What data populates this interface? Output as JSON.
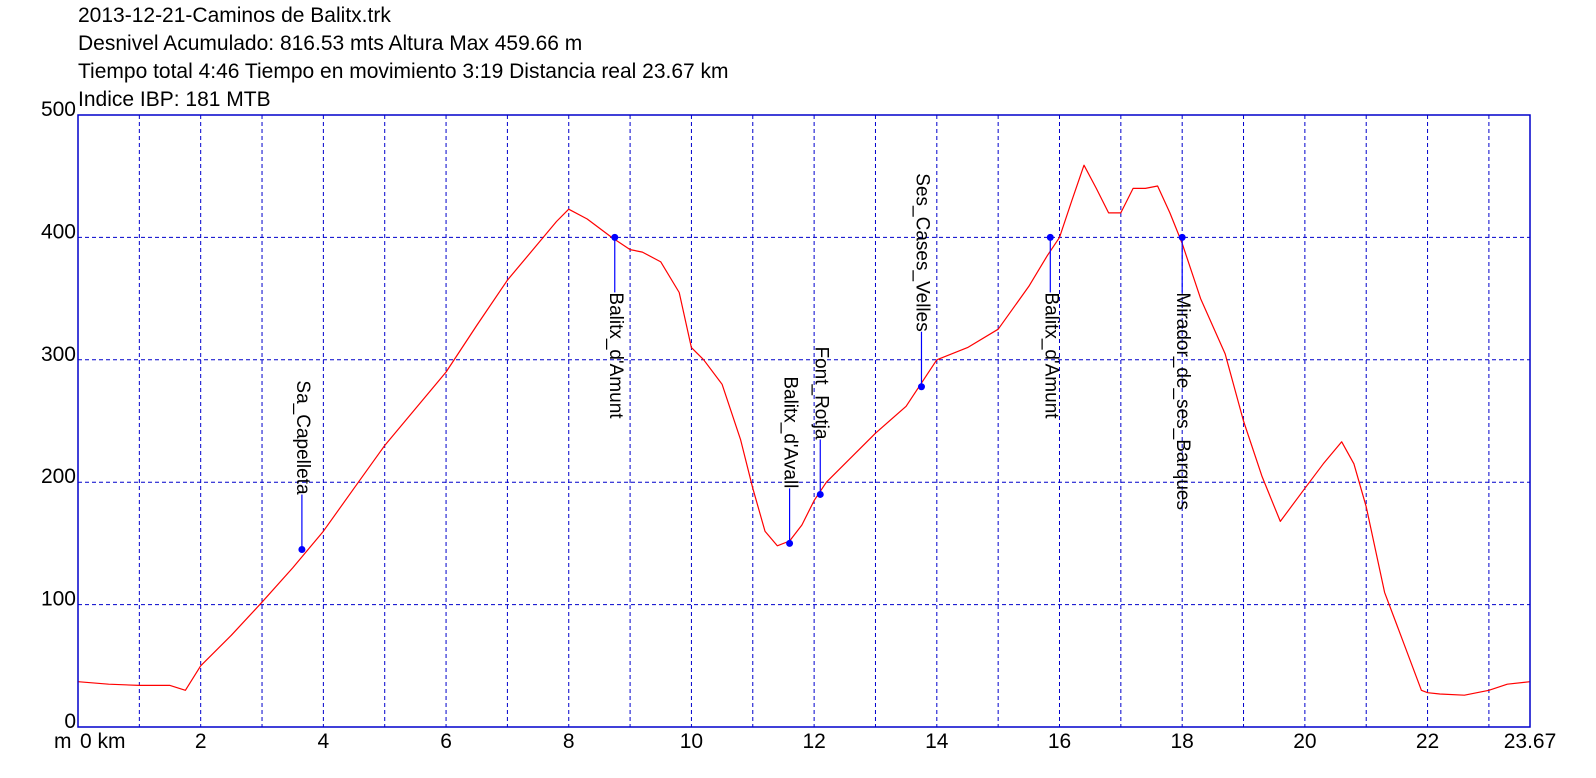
{
  "header": {
    "line1": "2013-12-21-Caminos de Balitx.trk",
    "line2": "Desnivel Acumulado: 816.53 mts  Altura Max 459.66 m",
    "line3": "Tiempo total 4:46 Tiempo en movimiento 3:19 Distancia real 23.67 km",
    "line4": "Indice IBP: 181 MTB"
  },
  "colors": {
    "profile": "#ff0000",
    "grid": "#0000cc",
    "waypoint": "#0000ff",
    "frame": "#0000cc"
  },
  "chart_data": {
    "type": "line",
    "title": "2013-12-21-Caminos de Balitx.trk",
    "xlabel": "km",
    "ylabel": "m",
    "xlim": [
      0,
      23.67
    ],
    "ylim": [
      0,
      500
    ],
    "grid": true,
    "x_ticks": [
      0,
      2,
      4,
      6,
      8,
      10,
      12,
      14,
      16,
      18,
      20,
      22,
      23.67
    ],
    "x_tick_labels": [
      "0 km",
      "2",
      "4",
      "6",
      "8",
      "10",
      "12",
      "14",
      "16",
      "18",
      "20",
      "22",
      "23.67"
    ],
    "y_ticks": [
      0,
      100,
      200,
      300,
      400,
      500
    ],
    "y_tick_labels": [
      "0",
      "100",
      "200",
      "300",
      "400",
      "500"
    ],
    "y_unit_label": "m",
    "series": [
      {
        "x": [
          0,
          0.5,
          1.0,
          1.5,
          1.75,
          2.0,
          2.5,
          3.0,
          3.5,
          4.0,
          4.5,
          5.0,
          5.5,
          6.0,
          6.5,
          7.0,
          7.5,
          7.8,
          8.0,
          8.3,
          8.7,
          9.0,
          9.2,
          9.5,
          9.8,
          10.0,
          10.2,
          10.5,
          10.8,
          11.0,
          11.2,
          11.4,
          11.6,
          11.8,
          12.0,
          12.2,
          12.5,
          13.0,
          13.5,
          14.0,
          14.5,
          15.0,
          15.5,
          15.8,
          16.0,
          16.2,
          16.4,
          16.6,
          16.8,
          17.0,
          17.2,
          17.4,
          17.6,
          17.8,
          18.0,
          18.3,
          18.7,
          19.0,
          19.3,
          19.6,
          20.0,
          20.3,
          20.6,
          20.8,
          21.0,
          21.3,
          21.6,
          21.9,
          22.0,
          22.2,
          22.6,
          23.0,
          23.3,
          23.67
        ],
        "values": [
          37,
          35,
          34,
          34,
          30,
          50,
          75,
          102,
          130,
          160,
          195,
          230,
          260,
          290,
          328,
          365,
          395,
          413,
          423,
          415,
          400,
          390,
          388,
          380,
          355,
          310,
          300,
          280,
          235,
          195,
          160,
          148,
          152,
          165,
          185,
          200,
          215,
          240,
          262,
          300,
          310,
          325,
          360,
          385,
          400,
          430,
          459,
          440,
          420,
          420,
          440,
          440,
          442,
          420,
          395,
          350,
          305,
          250,
          205,
          168,
          195,
          215,
          233,
          215,
          180,
          110,
          70,
          30,
          28,
          27,
          26,
          30,
          35,
          37
        ]
      }
    ],
    "waypoints": [
      {
        "name": "Sa_Capelleta",
        "x": 3.65,
        "y": 145
      },
      {
        "name": "Balitx_d'Amunt",
        "x": 8.75,
        "y": 400
      },
      {
        "name": "Balitx_d'Avall",
        "x": 11.6,
        "y": 150
      },
      {
        "name": "Font_Rotja",
        "x": 12.1,
        "y": 190
      },
      {
        "name": "Ses_Cases_Velles",
        "x": 13.75,
        "y": 278
      },
      {
        "name": "Balitx_d'Amunt",
        "x": 15.85,
        "y": 400
      },
      {
        "name": "Mirador_de_ses_Barques",
        "x": 18.0,
        "y": 400
      }
    ]
  }
}
